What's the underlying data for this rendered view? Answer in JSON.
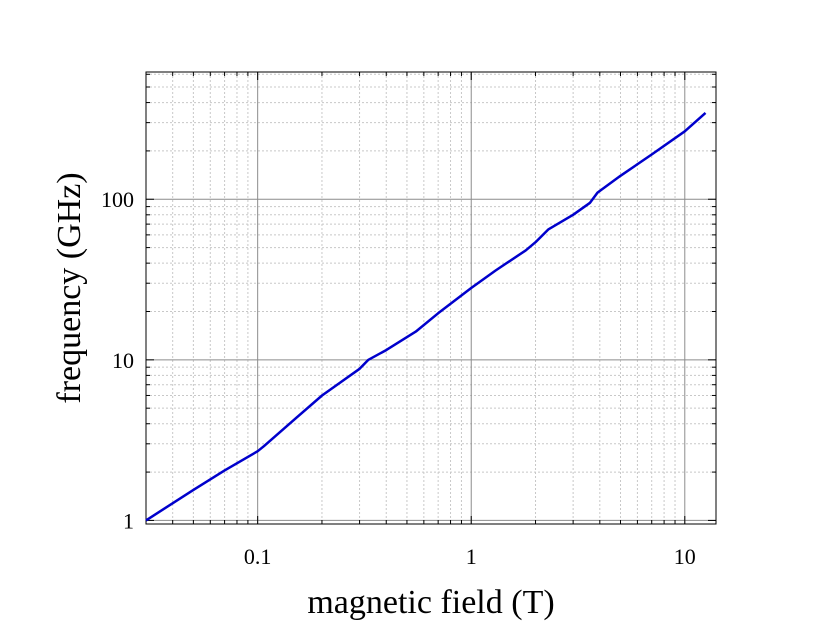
{
  "chart_data": {
    "type": "line",
    "title": "",
    "xlabel": "magnetic field (T)",
    "ylabel": "frequency (GHz)",
    "x_scale": "log",
    "y_scale": "log",
    "xlim": [
      0.03,
      14
    ],
    "ylim": [
      0.95,
      620
    ],
    "grid": true,
    "x_ticks": [
      {
        "value": 0.1,
        "label": "0.1"
      },
      {
        "value": 1,
        "label": "1"
      },
      {
        "value": 10,
        "label": "10"
      }
    ],
    "y_ticks": [
      {
        "value": 1,
        "label": "1"
      },
      {
        "value": 10,
        "label": "10"
      },
      {
        "value": 100,
        "label": "100"
      }
    ],
    "colors": {
      "line": "#0000cc",
      "major_grid": "#8c8c8c",
      "minor_grid": "#c8c8c8",
      "frame": "#000000"
    },
    "series": [
      {
        "x": [
          0.03,
          0.05,
          0.07,
          0.1,
          0.107,
          0.15,
          0.2,
          0.3,
          0.33,
          0.4,
          0.55,
          0.7,
          1.0,
          1.3,
          1.8,
          2.0,
          2.3,
          3.0,
          3.6,
          3.9,
          5.0,
          7.0,
          10.0,
          12.5
        ],
        "y": [
          1.0,
          1.55,
          2.05,
          2.7,
          2.9,
          4.3,
          6.0,
          8.8,
          10.0,
          11.5,
          15.0,
          19.5,
          28.0,
          36.0,
          48.0,
          54.0,
          65.0,
          80.0,
          95.0,
          110.0,
          140.0,
          190.0,
          265.0,
          345.0
        ]
      }
    ]
  }
}
